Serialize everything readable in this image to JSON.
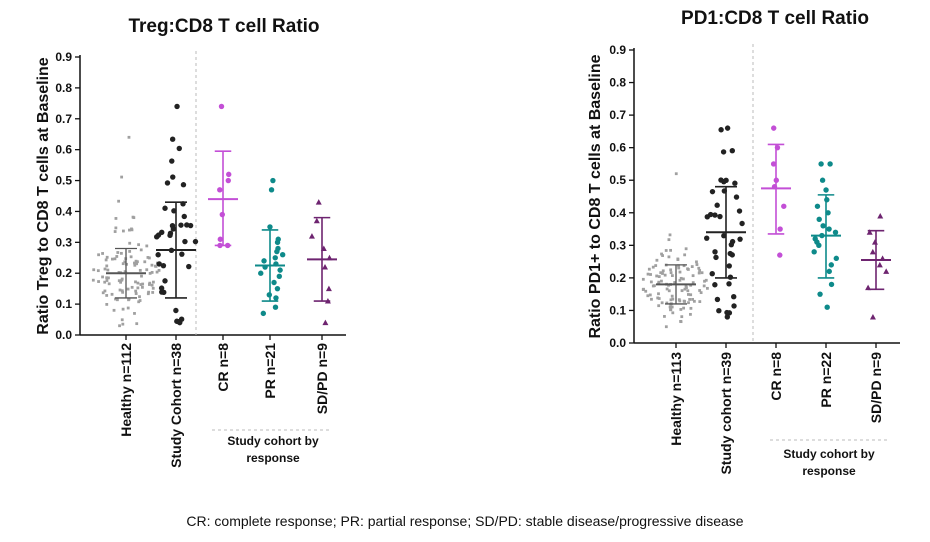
{
  "chart_data": [
    {
      "type": "scatter",
      "title": "Treg:CD8 T cell Ratio",
      "ylabel": "Ratio Treg to CD8 T cells at Baseline",
      "ylim": [
        0,
        0.9
      ],
      "yticks": [
        "0.0",
        "0.1",
        "0.2",
        "0.3",
        "0.4",
        "0.5",
        "0.6",
        "0.7",
        "0.8",
        "0.9"
      ],
      "group_label": [
        "Study cohort by",
        "response"
      ],
      "series": [
        {
          "name": "Healthy n=112",
          "color": "#a0a0a0",
          "shape": "square",
          "n": 112,
          "center": 0.2,
          "sd_low": 0.12,
          "sd_high": 0.28,
          "min": 0.03,
          "max": 0.64
        },
        {
          "name": "Study Cohort n=38",
          "color": "#222222",
          "shape": "circle",
          "n": 38,
          "center": 0.275,
          "sd_low": 0.12,
          "sd_high": 0.43,
          "min": 0.04,
          "max": 0.74
        },
        {
          "name": "CR n=8",
          "color": "#c34fd6",
          "shape": "circle",
          "n": 8,
          "center": 0.44,
          "sd_low": 0.29,
          "sd_high": 0.595,
          "values": [
            0.74,
            0.52,
            0.5,
            0.47,
            0.39,
            0.31,
            0.29,
            0.29
          ]
        },
        {
          "name": "PR n=21",
          "color": "#0e8a8a",
          "shape": "circle",
          "n": 21,
          "center": 0.225,
          "sd_low": 0.11,
          "sd_high": 0.34,
          "values": [
            0.5,
            0.47,
            0.35,
            0.31,
            0.3,
            0.28,
            0.27,
            0.26,
            0.25,
            0.24,
            0.23,
            0.22,
            0.21,
            0.2,
            0.19,
            0.17,
            0.15,
            0.13,
            0.12,
            0.09,
            0.07
          ]
        },
        {
          "name": "SD/PD n=9",
          "color": "#6e2470",
          "shape": "triangle",
          "n": 9,
          "center": 0.245,
          "sd_low": 0.11,
          "sd_high": 0.38,
          "values": [
            0.43,
            0.37,
            0.32,
            0.28,
            0.25,
            0.22,
            0.15,
            0.11,
            0.04
          ]
        }
      ]
    },
    {
      "type": "scatter",
      "title": "PD1:CD8 T cell Ratio",
      "ylabel": "Ratio PD1+ to CD8 T cells at Baseline",
      "ylim": [
        0,
        0.9
      ],
      "yticks": [
        "0.0",
        "0.1",
        "0.2",
        "0.3",
        "0.4",
        "0.5",
        "0.6",
        "0.7",
        "0.8",
        "0.9"
      ],
      "group_label": [
        "Study cohort by",
        "response"
      ],
      "series": [
        {
          "name": "Healthy n=113",
          "color": "#a0a0a0",
          "shape": "square",
          "n": 113,
          "center": 0.18,
          "sd_low": 0.12,
          "sd_high": 0.24,
          "min": 0.05,
          "max": 0.52
        },
        {
          "name": "Study cohort n=39",
          "color": "#222222",
          "shape": "circle",
          "n": 39,
          "center": 0.34,
          "sd_low": 0.2,
          "sd_high": 0.48,
          "min": 0.08,
          "max": 0.66
        },
        {
          "name": "CR n=8",
          "color": "#c34fd6",
          "shape": "circle",
          "n": 8,
          "center": 0.475,
          "sd_low": 0.335,
          "sd_high": 0.61,
          "values": [
            0.66,
            0.6,
            0.55,
            0.5,
            0.48,
            0.42,
            0.35,
            0.27
          ]
        },
        {
          "name": "PR n=22",
          "color": "#0e8a8a",
          "shape": "circle",
          "n": 22,
          "center": 0.33,
          "sd_low": 0.2,
          "sd_high": 0.455,
          "values": [
            0.55,
            0.55,
            0.5,
            0.47,
            0.44,
            0.42,
            0.4,
            0.38,
            0.36,
            0.35,
            0.34,
            0.33,
            0.32,
            0.31,
            0.3,
            0.28,
            0.26,
            0.24,
            0.22,
            0.18,
            0.15,
            0.11
          ]
        },
        {
          "name": "SD/PD n=9",
          "color": "#6e2470",
          "shape": "triangle",
          "n": 9,
          "center": 0.255,
          "sd_low": 0.165,
          "sd_high": 0.345,
          "values": [
            0.39,
            0.34,
            0.31,
            0.28,
            0.26,
            0.24,
            0.22,
            0.17,
            0.08
          ]
        }
      ]
    }
  ],
  "footnote": "CR: complete response; PR: partial response; SD/PD: stable disease/progressive disease"
}
